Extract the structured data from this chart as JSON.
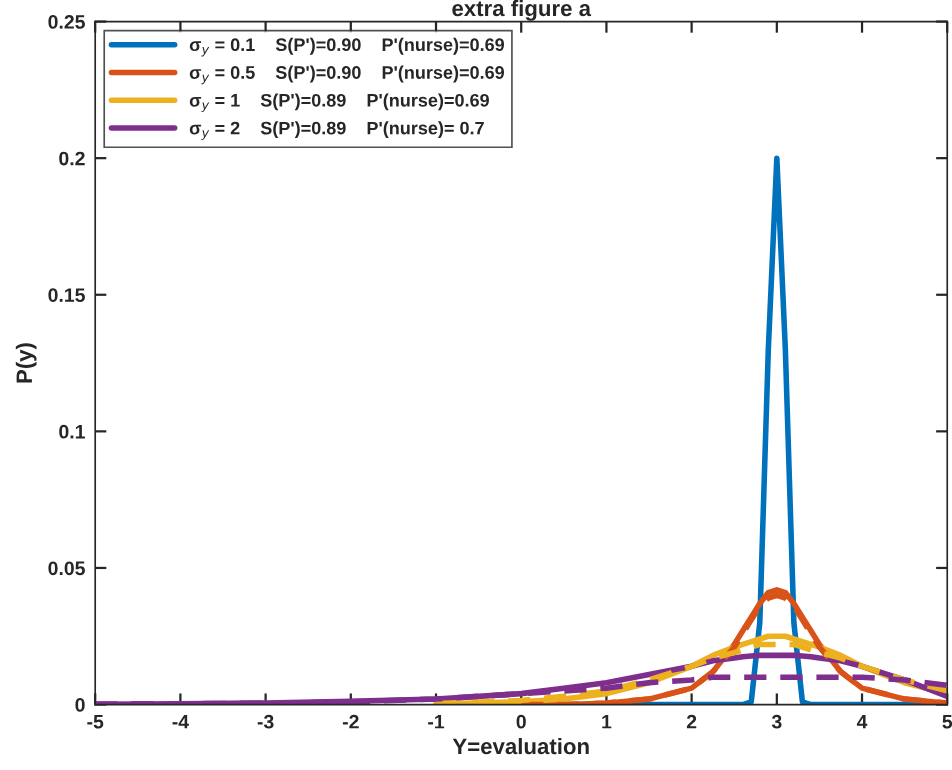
{
  "chart_data": {
    "type": "line",
    "title": "extra figure a",
    "xlabel": "Y=evaluation",
    "ylabel": "P(y)",
    "x": [
      -5,
      -4,
      -3,
      -2,
      -1,
      0,
      0.5,
      1,
      1.5,
      2,
      2.25,
      2.5,
      2.6,
      2.7,
      2.8,
      2.9,
      3,
      3.1,
      3.2,
      3.3,
      3.4,
      3.5,
      3.75,
      4,
      4.5,
      5
    ],
    "series": [
      {
        "name": "σ$_{y}$ = 0.1    S(P')=0.90    P'(nurse)=0.69",
        "color": "#0072bd",
        "line_style": "solid",
        "values": [
          null,
          null,
          null,
          null,
          null,
          null,
          null,
          0,
          0,
          0,
          0,
          0,
          0,
          0.001,
          0.03,
          0.13,
          0.2,
          0.13,
          0.03,
          0.001,
          0,
          0,
          0,
          0,
          0,
          0
        ]
      },
      {
        "name": "σ$_{y}$ = 0.5    S(P')=0.90    P'(nurse)=0.69",
        "color": "#d95319",
        "line_style": "solid",
        "values": [
          null,
          null,
          null,
          null,
          null,
          0,
          0,
          0.0005,
          0.002,
          0.006,
          0.012,
          0.022,
          0.027,
          0.032,
          0.037,
          0.041,
          0.042,
          0.041,
          0.037,
          0.032,
          0.027,
          0.022,
          0.012,
          0.006,
          0.002,
          0.0005
        ]
      },
      {
        "name": "σ$_{y}$ = 1    S(P')=0.89    P'(nurse)=0.69",
        "color": "#edb120",
        "line_style": "solid",
        "values": [
          null,
          null,
          null,
          null,
          0.0002,
          0.001,
          0.002,
          0.004,
          0.008,
          0.014,
          0.018,
          0.021,
          0.022,
          0.023,
          0.024,
          0.025,
          0.025,
          0.025,
          0.024,
          0.023,
          0.022,
          0.021,
          0.018,
          0.014,
          0.008,
          0.004
        ]
      },
      {
        "name": "σ$_{y}$ = 2    S(P')=0.89    P'(nurse)= 0.7",
        "color": "#7e2f8e",
        "line_style": "solid",
        "values": [
          0.0001,
          0.0003,
          0.0006,
          0.0012,
          0.002,
          0.004,
          0.006,
          0.008,
          0.011,
          0.014,
          0.016,
          0.017,
          0.0175,
          0.0178,
          0.018,
          0.018,
          0.018,
          0.018,
          0.018,
          0.0178,
          0.0175,
          0.017,
          0.016,
          0.014,
          0.009,
          0.003
        ]
      },
      {
        "color": "#d95319",
        "line_style": "dashed",
        "values": [
          null,
          null,
          null,
          null,
          null,
          0,
          0,
          0.0006,
          0.002,
          0.006,
          0.012,
          0.021,
          0.026,
          0.031,
          0.036,
          0.039,
          0.04,
          0.039,
          0.036,
          0.031,
          0.026,
          0.021,
          0.012,
          0.006,
          0.002,
          0.0006
        ]
      },
      {
        "color": "#edb120",
        "line_style": "dashed",
        "values": [
          null,
          null,
          null,
          null,
          0.0004,
          0.0015,
          0.003,
          0.005,
          0.009,
          0.014,
          0.017,
          0.019,
          0.02,
          0.021,
          0.022,
          0.022,
          0.022,
          0.022,
          0.022,
          0.021,
          0.02,
          0.019,
          0.017,
          0.014,
          0.009,
          0.005
        ]
      },
      {
        "color": "#7e2f8e",
        "line_style": "dashed",
        "values": [
          0.0002,
          0.0003,
          0.0005,
          0.001,
          0.002,
          0.004,
          0.005,
          0.006,
          0.008,
          0.009,
          0.01,
          0.01,
          0.01,
          0.01,
          0.01,
          0.01,
          0.01,
          0.01,
          0.01,
          0.01,
          0.01,
          0.01,
          0.01,
          0.01,
          0.009,
          0.007
        ]
      }
    ],
    "xlim": [
      -5,
      5
    ],
    "ylim": [
      0,
      0.25
    ],
    "xticks": [
      -5,
      -4,
      -3,
      -2,
      -1,
      0,
      1,
      2,
      3,
      4,
      5
    ],
    "yticks": [
      0,
      0.05,
      0.1,
      0.15,
      0.2,
      0.25
    ],
    "grid": false,
    "legend": "top left",
    "marker": "none"
  }
}
